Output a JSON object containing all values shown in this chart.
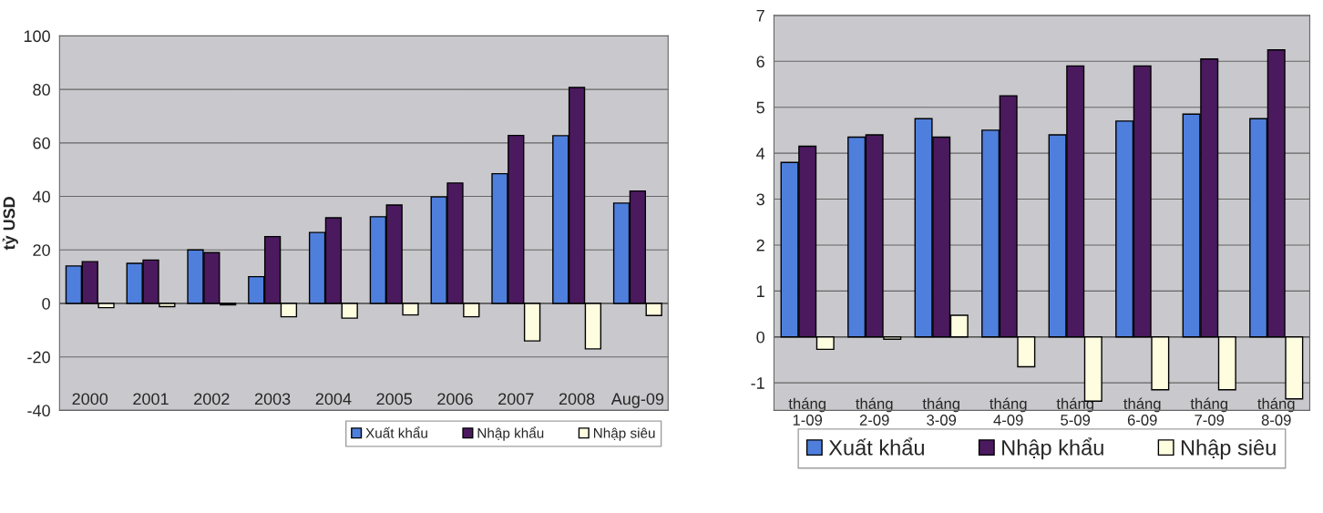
{
  "chart_data": [
    {
      "type": "bar",
      "ylabel": "tỷ USD",
      "categories": [
        "2000",
        "2001",
        "2002",
        "2003",
        "2004",
        "2005",
        "2006",
        "2007",
        "2008",
        "Aug-09"
      ],
      "series": [
        {
          "name": "Xuất khẩu",
          "color": "#4f7fdc",
          "values": [
            14,
            15,
            20,
            10,
            26.5,
            32.4,
            39.8,
            48.5,
            62.7,
            37.5
          ]
        },
        {
          "name": "Nhập khẩu",
          "color": "#4b1a5e",
          "values": [
            15.6,
            16.2,
            19,
            25,
            32,
            36.8,
            45,
            62.8,
            80.7,
            42
          ]
        },
        {
          "name": "Nhập siêu",
          "color": "#fffde0",
          "values": [
            -1.6,
            -1.2,
            -0.5,
            -5,
            -5.5,
            -4.3,
            -5,
            -14,
            -17,
            -4.5
          ]
        }
      ],
      "ylim": [
        -40,
        100
      ],
      "yticks": [
        -40,
        -20,
        0,
        20,
        40,
        60,
        80,
        100
      ],
      "grid": "y",
      "legend": "bottom right"
    },
    {
      "type": "bar",
      "categories": [
        "tháng 1-09",
        "tháng 2-09",
        "tháng 3-09",
        "tháng 4-09",
        "tháng 5-09",
        "tháng 6-09",
        "tháng 7-09",
        "tháng 8-09"
      ],
      "series": [
        {
          "name": "Xuất khẩu",
          "color": "#4f7fdc",
          "values": [
            3.8,
            4.35,
            4.75,
            4.5,
            4.4,
            4.7,
            4.85,
            4.75
          ]
        },
        {
          "name": "Nhập khẩu",
          "color": "#4b1a5e",
          "values": [
            4.15,
            4.4,
            4.35,
            5.25,
            5.9,
            5.9,
            6.05,
            6.25
          ]
        },
        {
          "name": "Nhập siêu",
          "color": "#fffde0",
          "values": [
            -0.27,
            -0.05,
            0.47,
            -0.65,
            -1.4,
            -1.15,
            -1.15,
            -1.35
          ]
        }
      ],
      "ylim": [
        -1.6,
        7
      ],
      "yticks": [
        -1,
        0,
        1,
        2,
        3,
        4,
        5,
        6,
        7
      ],
      "grid": "y",
      "legend": "bottom"
    }
  ]
}
